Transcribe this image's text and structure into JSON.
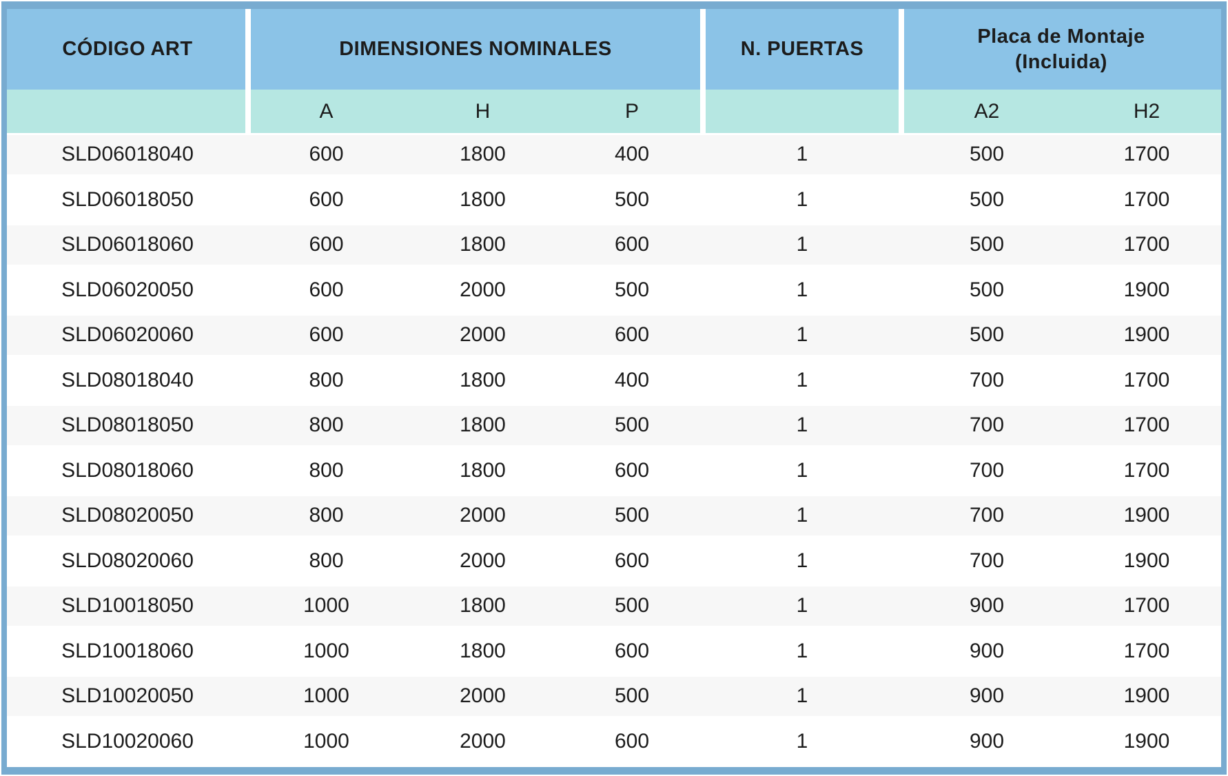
{
  "table": {
    "header_groups": [
      {
        "label": "CÓDIGO ART"
      },
      {
        "label": "DIMENSIONES NOMINALES"
      },
      {
        "label": "N. PUERTAS"
      },
      {
        "label": "Placa de Montaje\n(Incluida)"
      }
    ],
    "subheaders": {
      "a": "A",
      "h": "H",
      "p": "P",
      "a2": "A2",
      "h2": "H2"
    },
    "columns": [
      "CÓDIGO ART",
      "A",
      "H",
      "P",
      "N. PUERTAS",
      "A2",
      "H2"
    ],
    "rows": [
      [
        "SLD06018040",
        "600",
        "1800",
        "400",
        "1",
        "500",
        "1700"
      ],
      [
        "SLD06018050",
        "600",
        "1800",
        "500",
        "1",
        "500",
        "1700"
      ],
      [
        "SLD06018060",
        "600",
        "1800",
        "600",
        "1",
        "500",
        "1700"
      ],
      [
        "SLD06020050",
        "600",
        "2000",
        "500",
        "1",
        "500",
        "1900"
      ],
      [
        "SLD06020060",
        "600",
        "2000",
        "600",
        "1",
        "500",
        "1900"
      ],
      [
        "SLD08018040",
        "800",
        "1800",
        "400",
        "1",
        "700",
        "1700"
      ],
      [
        "SLD08018050",
        "800",
        "1800",
        "500",
        "1",
        "700",
        "1700"
      ],
      [
        "SLD08018060",
        "800",
        "1800",
        "600",
        "1",
        "700",
        "1700"
      ],
      [
        "SLD08020050",
        "800",
        "2000",
        "500",
        "1",
        "700",
        "1900"
      ],
      [
        "SLD08020060",
        "800",
        "2000",
        "600",
        "1",
        "700",
        "1900"
      ],
      [
        "SLD10018050",
        "1000",
        "1800",
        "500",
        "1",
        "900",
        "1700"
      ],
      [
        "SLD10018060",
        "1000",
        "1800",
        "600",
        "1",
        "900",
        "1700"
      ],
      [
        "SLD10020050",
        "1000",
        "2000",
        "500",
        "1",
        "900",
        "1900"
      ],
      [
        "SLD10020060",
        "1000",
        "2000",
        "600",
        "1",
        "900",
        "1900"
      ]
    ]
  },
  "colors": {
    "frame_border": "#78abd0",
    "header_blue": "#8bc3e7",
    "subheader_teal": "#b6e7e2",
    "row_alt_gray": "#f7f7f7",
    "row_white": "#ffffff",
    "text": "#1c1c1c"
  }
}
